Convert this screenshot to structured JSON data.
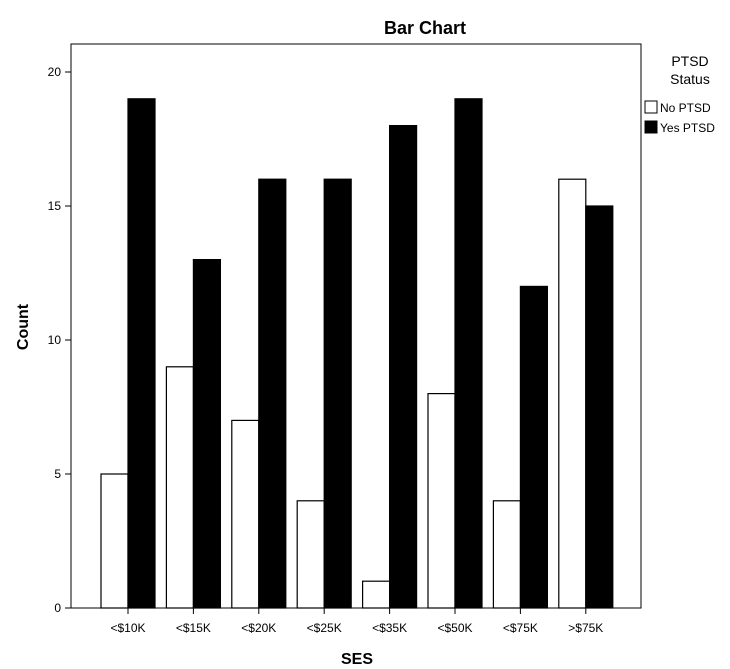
{
  "chart_data": {
    "type": "bar",
    "title": "Bar Chart",
    "xlabel": "SES",
    "ylabel": "Count",
    "categories": [
      "<$10K",
      "<$15K",
      "<$20K",
      "<$25K",
      "<$35K",
      "<$50K",
      "<$75K",
      ">$75K"
    ],
    "ylim": [
      0,
      21
    ],
    "yticks": [
      0,
      5,
      10,
      15,
      20
    ],
    "legend": {
      "title_line1": "PTSD",
      "title_line2": "Status",
      "placement": "right"
    },
    "series": [
      {
        "name": "No PTSD",
        "color": "#ffffff",
        "values": [
          5,
          9,
          7,
          4,
          1,
          8,
          4,
          16
        ]
      },
      {
        "name": "Yes PTSD",
        "color": "#000000",
        "values": [
          19,
          13,
          16,
          16,
          18,
          19,
          12,
          15
        ]
      }
    ]
  }
}
